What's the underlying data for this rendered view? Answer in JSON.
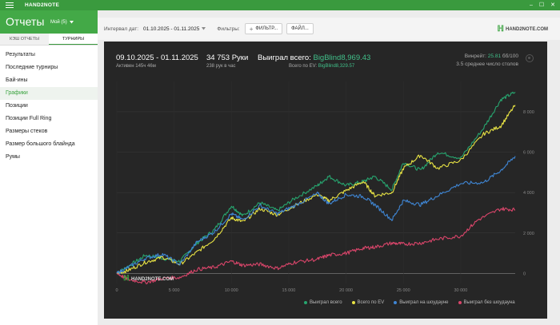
{
  "app": {
    "name": "HAND2NOTE",
    "window_buttons": [
      "‒",
      "☐",
      "✕"
    ]
  },
  "header": {
    "title": "Отчеты",
    "profile": "Мой (5)"
  },
  "sidebar": {
    "tabs": [
      {
        "label": "КЭШ ОТЧЕТЫ"
      },
      {
        "label": "ТУРНИРЫ"
      }
    ],
    "items": [
      {
        "label": "Результаты"
      },
      {
        "label": "Последние турниры"
      },
      {
        "label": "Бай-ины"
      },
      {
        "label": "Графики"
      },
      {
        "label": "Позиции"
      },
      {
        "label": "Позиции Full Ring"
      },
      {
        "label": "Размеры стеков"
      },
      {
        "label": "Размер большого блайнда"
      },
      {
        "label": "Румы"
      }
    ]
  },
  "toolbar": {
    "date_label": "Интервал дат:",
    "date_value": "01.10.2025 - 01.11.2025",
    "filters_label": "Фильтры:",
    "filter_button": "ФИЛЬТР...",
    "file_button": "ФАЙЛ..."
  },
  "brand": {
    "logo_text": "HAND2NOTE.COM",
    "accent": "#3aa33f"
  },
  "summary": {
    "date_range": "09.10.2025 - 01.11.2025",
    "active": "Активен 145ч 46м",
    "hands": "34 753 Руки",
    "hands_per_hour": "238 рук в час",
    "won_label": "Выиграл всего:",
    "won_value": "BigBlind8,969.43",
    "ev_label": "Всего по EV:",
    "ev_value": "BigBlind8,329.57",
    "winrate_label": "Винрейт:",
    "winrate_value": "25.81",
    "winrate_per": "бб/100",
    "tables": "3.5 среднее число столов"
  },
  "chart_data": {
    "type": "line",
    "xlim": [
      0,
      34753
    ],
    "ylim": [
      -500,
      9500
    ],
    "x_ticks": [
      "0",
      "5 000",
      "10 000",
      "15 000",
      "20 000",
      "25 000",
      "30 000"
    ],
    "y_ticks": [
      "0",
      "2 000",
      "4 000",
      "6 000",
      "8 000"
    ],
    "series": [
      {
        "name": "Выиграл всего",
        "color": "#27a56f",
        "points": [
          [
            0,
            0
          ],
          [
            1000,
            350
          ],
          [
            2500,
            900
          ],
          [
            4000,
            750
          ],
          [
            5500,
            600
          ],
          [
            7000,
            1500
          ],
          [
            8500,
            2150
          ],
          [
            10000,
            3350
          ],
          [
            11000,
            2850
          ],
          [
            12500,
            3500
          ],
          [
            14000,
            3100
          ],
          [
            15500,
            3700
          ],
          [
            17500,
            4350
          ],
          [
            18500,
            4800
          ],
          [
            20000,
            4350
          ],
          [
            21500,
            4550
          ],
          [
            22500,
            4800
          ],
          [
            24000,
            4150
          ],
          [
            25000,
            5500
          ],
          [
            26500,
            5100
          ],
          [
            28000,
            6000
          ],
          [
            30000,
            5700
          ],
          [
            32000,
            7200
          ],
          [
            33500,
            8600
          ],
          [
            34753,
            8969
          ]
        ]
      },
      {
        "name": "Всего по EV",
        "color": "#e8e344",
        "points": [
          [
            0,
            0
          ],
          [
            1000,
            150
          ],
          [
            2500,
            550
          ],
          [
            4000,
            800
          ],
          [
            5500,
            450
          ],
          [
            7000,
            1050
          ],
          [
            8500,
            1700
          ],
          [
            10000,
            2750
          ],
          [
            11000,
            2550
          ],
          [
            12500,
            3200
          ],
          [
            14000,
            2900
          ],
          [
            15500,
            3350
          ],
          [
            17500,
            3900
          ],
          [
            18500,
            3600
          ],
          [
            20000,
            4100
          ],
          [
            21500,
            4550
          ],
          [
            22500,
            3850
          ],
          [
            24000,
            4000
          ],
          [
            25000,
            5200
          ],
          [
            26500,
            5850
          ],
          [
            28000,
            5200
          ],
          [
            30000,
            5600
          ],
          [
            32000,
            6900
          ],
          [
            33500,
            7300
          ],
          [
            34753,
            8330
          ]
        ]
      },
      {
        "name": "Выиграл на шоудауне",
        "color": "#3f86d4",
        "points": [
          [
            0,
            0
          ],
          [
            1000,
            300
          ],
          [
            2500,
            750
          ],
          [
            4000,
            950
          ],
          [
            5500,
            450
          ],
          [
            7000,
            1550
          ],
          [
            8500,
            2050
          ],
          [
            10000,
            2950
          ],
          [
            11000,
            2650
          ],
          [
            12500,
            3350
          ],
          [
            14000,
            2950
          ],
          [
            15500,
            3350
          ],
          [
            17500,
            3950
          ],
          [
            18500,
            3450
          ],
          [
            20000,
            3900
          ],
          [
            21500,
            3800
          ],
          [
            22500,
            3400
          ],
          [
            24000,
            2650
          ],
          [
            25000,
            3600
          ],
          [
            26500,
            3400
          ],
          [
            28000,
            3850
          ],
          [
            30000,
            4450
          ],
          [
            32000,
            4500
          ],
          [
            33500,
            5100
          ],
          [
            34753,
            5800
          ]
        ]
      },
      {
        "name": "Выиграл без шоудауна",
        "color": "#d9456a",
        "points": [
          [
            0,
            0
          ],
          [
            1000,
            -300
          ],
          [
            2500,
            -450
          ],
          [
            4000,
            -250
          ],
          [
            5500,
            -200
          ],
          [
            7000,
            200
          ],
          [
            8500,
            300
          ],
          [
            10000,
            600
          ],
          [
            11000,
            400
          ],
          [
            12500,
            450
          ],
          [
            14000,
            250
          ],
          [
            15500,
            550
          ],
          [
            17500,
            700
          ],
          [
            18500,
            900
          ],
          [
            20000,
            1000
          ],
          [
            21500,
            1250
          ],
          [
            22500,
            1300
          ],
          [
            24000,
            1500
          ],
          [
            25000,
            1450
          ],
          [
            26500,
            1500
          ],
          [
            28000,
            1700
          ],
          [
            30000,
            1850
          ],
          [
            31500,
            2650
          ],
          [
            33500,
            3200
          ],
          [
            34753,
            3150
          ]
        ]
      }
    ]
  }
}
